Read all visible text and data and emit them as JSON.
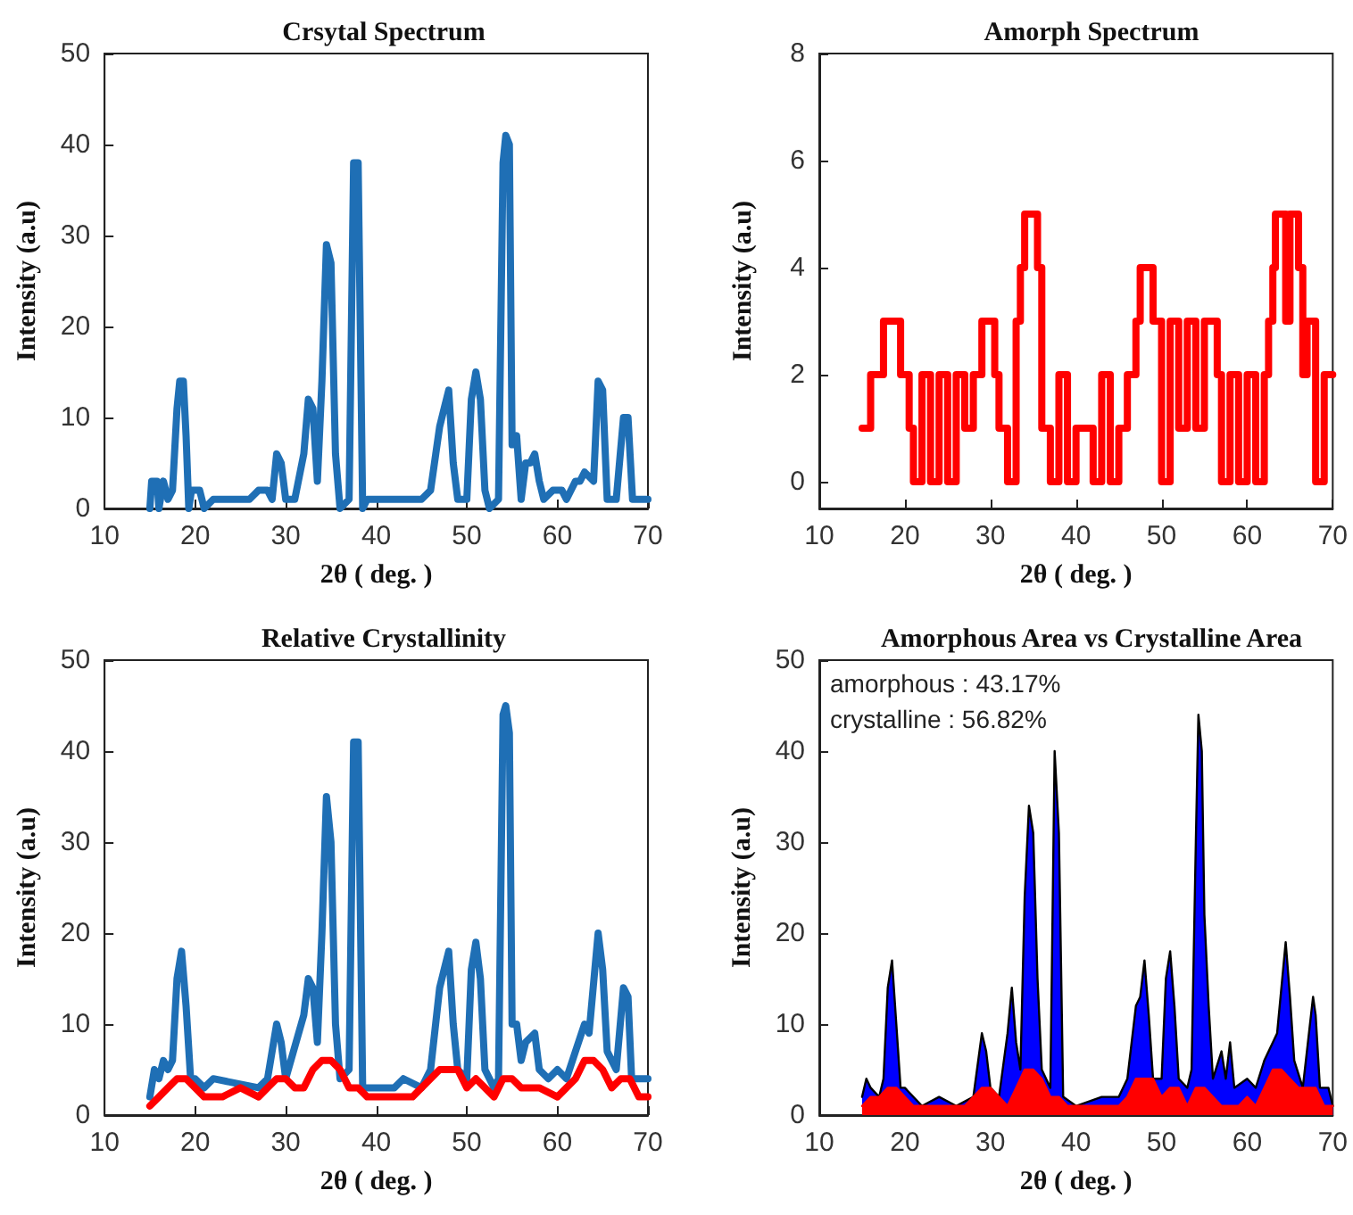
{
  "chart_data": [
    {
      "type": "line",
      "title": "Crsytal Spectrum",
      "xlabel": "2θ ( deg. )",
      "ylabel": "Intensity (a.u)",
      "xlim": [
        10,
        70
      ],
      "xticks": [
        10,
        20,
        30,
        40,
        50,
        60,
        70
      ],
      "ylim": [
        0,
        50
      ],
      "yticks": [
        0,
        10,
        20,
        30,
        40,
        50
      ],
      "x": [
        15,
        15.2,
        15.8,
        16,
        16.5,
        17,
        17.5,
        18,
        18.3,
        18.7,
        19,
        19.3,
        19.6,
        20.5,
        21,
        22,
        24,
        26,
        27,
        28,
        28.5,
        29,
        29.5,
        30,
        31,
        32,
        32.5,
        33,
        33.5,
        34,
        34.5,
        35,
        35.5,
        36,
        37,
        37.5,
        38,
        38.5,
        39,
        44,
        45,
        46,
        47,
        47.5,
        48,
        48.5,
        49,
        50,
        50.5,
        51,
        51.5,
        52,
        52.5,
        53.5,
        54,
        54.3,
        54.7,
        55,
        55.5,
        56,
        56.5,
        57,
        57.5,
        58,
        58.5,
        59.5,
        60.5,
        61,
        62,
        62.5,
        63,
        64,
        64.5,
        65,
        65.5,
        66.5,
        67.3,
        67.8,
        68.3,
        69,
        70
      ],
      "series": [
        {
          "color": "#1f6fb5",
          "values": [
            0,
            3,
            3,
            0,
            3,
            1,
            2,
            11,
            14,
            14,
            8,
            0,
            2,
            2,
            0,
            1,
            1,
            1,
            2,
            2,
            1,
            6,
            5,
            1,
            1,
            6,
            12,
            11,
            3,
            14,
            29,
            27,
            6,
            0,
            1,
            38,
            38,
            0,
            1,
            1,
            1,
            2,
            9,
            11,
            13,
            5,
            1,
            1,
            12,
            15,
            12,
            2,
            0,
            1,
            38,
            41,
            40,
            7,
            8,
            1,
            5,
            5,
            6,
            3,
            1,
            2,
            2,
            1,
            3,
            3,
            4,
            3,
            14,
            13,
            1,
            1,
            10,
            10,
            1,
            1,
            1
          ]
        }
      ]
    },
    {
      "type": "step",
      "title": "Amorph Spectrum",
      "xlabel": "2θ ( deg. )",
      "ylabel": "Intensity (a.u)",
      "xlim": [
        10,
        70
      ],
      "xticks": [
        10,
        20,
        30,
        40,
        50,
        60,
        70
      ],
      "ylim": [
        -0.5,
        8
      ],
      "yticks": [
        0,
        2,
        4,
        6,
        8
      ],
      "x": [
        15,
        16,
        17.5,
        19.5,
        20.5,
        21,
        22,
        23,
        24,
        25,
        26,
        27,
        28,
        29,
        30.5,
        31,
        32,
        33,
        33.5,
        34,
        35.5,
        36,
        37,
        38,
        39,
        40,
        42,
        43,
        44,
        45,
        46,
        47,
        47.5,
        49,
        50,
        51,
        52,
        53,
        54,
        55,
        56.5,
        57,
        58,
        59,
        60,
        61,
        62,
        62.5,
        63,
        63.3,
        64.5,
        65,
        66,
        66.5,
        67,
        68,
        69,
        70
      ],
      "series": [
        {
          "color": "#ff0000",
          "values": [
            1,
            2,
            3,
            2,
            1,
            0,
            2,
            0,
            2,
            0,
            2,
            1,
            2,
            3,
            2,
            1,
            0,
            3,
            4,
            5,
            4,
            1,
            0,
            2,
            0,
            1,
            0,
            2,
            0,
            1,
            2,
            3,
            4,
            3,
            0,
            3,
            1,
            3,
            1,
            3,
            2,
            0,
            2,
            0,
            2,
            0,
            2,
            3,
            4,
            5,
            3,
            5,
            4,
            2,
            3,
            0,
            2,
            2
          ]
        }
      ]
    },
    {
      "type": "line",
      "title": "Relative Crystallinity",
      "xlabel": "2θ ( deg. )",
      "ylabel": "Intensity (a.u)",
      "xlim": [
        10,
        70
      ],
      "xticks": [
        10,
        20,
        30,
        40,
        50,
        60,
        70
      ],
      "ylim": [
        0,
        50
      ],
      "yticks": [
        0,
        10,
        20,
        30,
        40,
        50
      ],
      "series": [
        {
          "color": "#1f6fb5",
          "x": [
            15,
            15.5,
            16,
            16.5,
            17,
            17.5,
            18,
            18.5,
            19,
            19.5,
            20,
            21,
            22,
            27,
            28,
            29,
            29.5,
            30,
            32,
            32.5,
            33,
            33.5,
            34,
            34.5,
            35,
            35.5,
            36,
            37,
            37.5,
            38,
            38.5,
            39,
            42,
            43,
            45,
            46,
            47,
            47.5,
            48,
            48.5,
            49,
            50,
            50.5,
            51,
            51.5,
            52,
            53,
            53.5,
            54,
            54.3,
            54.7,
            55,
            55.5,
            56,
            56.5,
            57.5,
            58,
            59,
            60,
            61,
            62,
            63,
            63.5,
            64.5,
            65,
            65.5,
            66.5,
            67.3,
            67.8,
            68.2,
            69,
            70
          ],
          "values": [
            2,
            5,
            4,
            6,
            5,
            6,
            15,
            18,
            12,
            4,
            4,
            3,
            4,
            3,
            4,
            10,
            8,
            4,
            11,
            15,
            14,
            8,
            20,
            35,
            30,
            10,
            4,
            5,
            41,
            41,
            3,
            3,
            3,
            4,
            3,
            5,
            14,
            16,
            18,
            10,
            5,
            4,
            16,
            19,
            15,
            5,
            3,
            4,
            44,
            45,
            42,
            10,
            10,
            6,
            8,
            9,
            5,
            4,
            5,
            4,
            7,
            10,
            9,
            20,
            16,
            7,
            5,
            14,
            13,
            4,
            4,
            4
          ]
        },
        {
          "color": "#ff0000",
          "x": [
            15,
            16,
            17,
            18,
            19,
            20,
            21,
            23,
            25,
            27,
            28,
            29,
            30,
            31,
            32,
            33,
            34,
            35,
            36,
            37,
            38,
            39,
            42,
            44,
            45,
            46,
            47,
            49,
            50,
            51,
            52,
            53,
            54,
            55,
            56,
            58,
            60,
            61,
            62,
            63,
            64,
            65,
            66,
            67,
            68,
            69,
            70
          ],
          "values": [
            1,
            2,
            3,
            4,
            4,
            3,
            2,
            2,
            3,
            2,
            3,
            4,
            4,
            3,
            3,
            5,
            6,
            6,
            5,
            3,
            3,
            2,
            2,
            2,
            3,
            4,
            5,
            5,
            3,
            4,
            3,
            2,
            4,
            4,
            3,
            3,
            2,
            3,
            4,
            6,
            6,
            5,
            3,
            4,
            4,
            2,
            2
          ]
        }
      ]
    },
    {
      "type": "area",
      "title": "Amorphous Area vs Crystalline Area",
      "xlabel": "2θ ( deg. )",
      "ylabel": "Intensity (a.u)",
      "xlim": [
        10,
        70
      ],
      "xticks": [
        10,
        20,
        30,
        40,
        50,
        60,
        70
      ],
      "ylim": [
        0,
        50
      ],
      "yticks": [
        0,
        10,
        20,
        30,
        40,
        50
      ],
      "annotations": [
        "amorphous : 43.17%",
        "crystalline : 56.82%"
      ],
      "series": [
        {
          "color": "#0000ff",
          "x": [
            15,
            15.5,
            16,
            17,
            17.5,
            18,
            18.5,
            19,
            19.5,
            20,
            22,
            24,
            26,
            28,
            29,
            29.5,
            30,
            31,
            32,
            32.5,
            33,
            33.5,
            34,
            34.5,
            35,
            35.5,
            36,
            37,
            37.5,
            38,
            38.5,
            40,
            43,
            45,
            46,
            47,
            47.5,
            48,
            48.5,
            49,
            50,
            50.5,
            51,
            51.5,
            52,
            53,
            53.5,
            54,
            54.3,
            54.7,
            55,
            55.5,
            56,
            57,
            57.5,
            58,
            58.5,
            60,
            61,
            62,
            63,
            63.5,
            64.5,
            65,
            65.5,
            66.5,
            67.7,
            68,
            68.5,
            69.5,
            70
          ],
          "values": [
            2,
            4,
            3,
            2,
            4,
            14,
            17,
            10,
            3,
            3,
            1,
            2,
            1,
            2,
            9,
            7,
            3,
            2,
            9,
            14,
            8,
            5,
            24,
            34,
            31,
            15,
            5,
            3,
            40,
            31,
            2,
            1,
            2,
            2,
            4,
            12,
            13,
            17,
            11,
            4,
            4,
            15,
            18,
            12,
            4,
            3,
            5,
            30,
            44,
            40,
            22,
            12,
            4,
            7,
            4,
            8,
            3,
            4,
            3,
            6,
            8,
            9,
            19,
            13,
            6,
            3,
            13,
            11,
            3,
            3,
            1
          ]
        },
        {
          "color": "#ff0000",
          "x": [
            15,
            16,
            17,
            18,
            19,
            20,
            21,
            27,
            28,
            29,
            30,
            31,
            32,
            33,
            34,
            35,
            36,
            37,
            38,
            39,
            45,
            46,
            47,
            49,
            50,
            51,
            52,
            53,
            54,
            55,
            56,
            57,
            59,
            60,
            61,
            62,
            63,
            64,
            65,
            66,
            67,
            68,
            69,
            70
          ],
          "values": [
            1,
            2,
            2,
            3,
            3,
            2,
            1,
            1,
            2,
            3,
            3,
            2,
            1,
            3,
            5,
            5,
            4,
            2,
            2,
            1,
            1,
            2,
            4,
            4,
            2,
            3,
            3,
            1,
            3,
            3,
            2,
            1,
            1,
            2,
            1,
            3,
            5,
            5,
            4,
            3,
            3,
            3,
            1,
            1
          ]
        }
      ]
    }
  ]
}
